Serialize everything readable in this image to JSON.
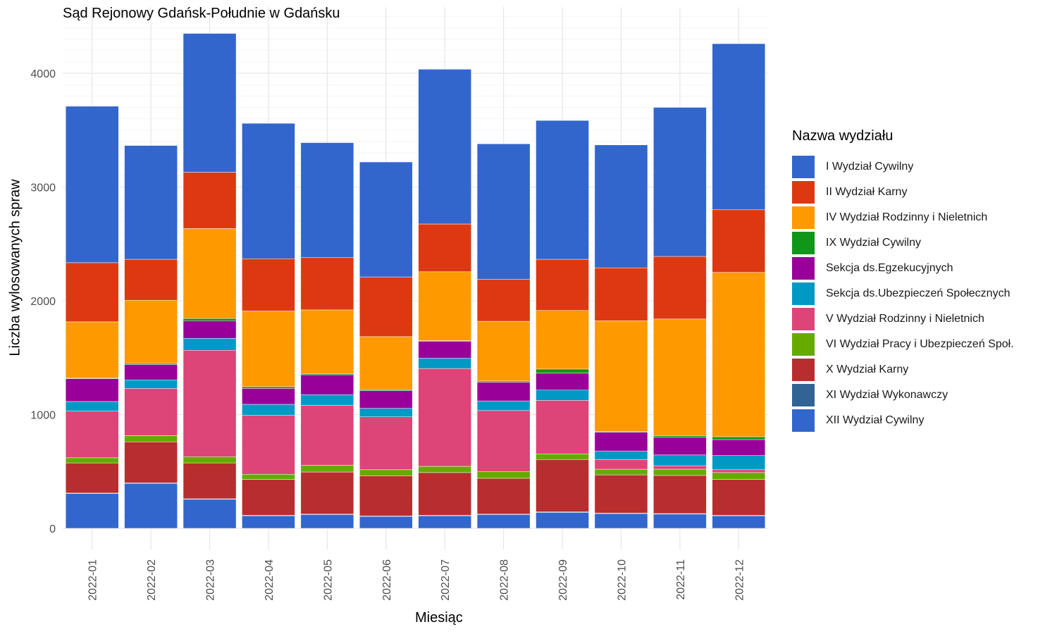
{
  "chart_data": {
    "type": "bar",
    "stacked": true,
    "title": "Sąd Rejonowy Gdańsk-Południe w Gdańsku",
    "xlabel": "Miesiąc",
    "ylabel": "Liczba wylosowanych spraw",
    "ylim": [
      0,
      4500
    ],
    "yticks": [
      0,
      1000,
      2000,
      3000,
      4000
    ],
    "grid": true,
    "legend_title": "Nazwa wydziału",
    "legend_position": "right",
    "categories": [
      "2022-01",
      "2022-02",
      "2022-03",
      "2022-04",
      "2022-05",
      "2022-06",
      "2022-07",
      "2022-08",
      "2022-09",
      "2022-10",
      "2022-11",
      "2022-12"
    ],
    "series": [
      {
        "name": "I Wydział Cywilny",
        "color": "#3366CC",
        "values": [
          1375,
          1000,
          1220,
          1190,
          1010,
          1010,
          1360,
          1190,
          1220,
          1080,
          1310,
          1460
        ]
      },
      {
        "name": "II Wydział Karny",
        "color": "#DC3912",
        "values": [
          520,
          360,
          495,
          460,
          460,
          525,
          420,
          370,
          450,
          465,
          550,
          550
        ]
      },
      {
        "name": "IV Wydział Rodzinny i Nieletnich",
        "color": "#FF9900",
        "values": [
          495,
          555,
          790,
          665,
          560,
          465,
          605,
          525,
          515,
          975,
          1025,
          1445
        ]
      },
      {
        "name": "IX Wydział Cywilny",
        "color": "#109618",
        "values": [
          5,
          10,
          20,
          15,
          10,
          10,
          5,
          10,
          35,
          5,
          15,
          25
        ]
      },
      {
        "name": "Sekcja ds.Egzekucyjnych",
        "color": "#990099",
        "values": [
          200,
          135,
          155,
          140,
          175,
          155,
          150,
          165,
          150,
          165,
          155,
          140
        ]
      },
      {
        "name": "Sekcja ds.Ubezpieczeń Społecznych",
        "color": "#0099C6",
        "values": [
          85,
          75,
          105,
          95,
          95,
          75,
          90,
          85,
          90,
          75,
          95,
          125
        ]
      },
      {
        "name": "V Wydział Rodzinny i Nieletnich",
        "color": "#DD4477",
        "values": [
          410,
          415,
          935,
          520,
          525,
          465,
          860,
          535,
          470,
          85,
          30,
          25
        ]
      },
      {
        "name": "VI Wydział Pracy i Ubezpieczeń Społ.",
        "color": "#66AA00",
        "values": [
          45,
          55,
          55,
          45,
          60,
          55,
          55,
          60,
          50,
          50,
          55,
          60
        ]
      },
      {
        "name": "X Wydział Karny",
        "color": "#B82E2E",
        "values": [
          265,
          360,
          315,
          315,
          370,
          350,
          375,
          315,
          460,
          335,
          335,
          315
        ]
      },
      {
        "name": "XI Wydział Wykonawczy",
        "color": "#316395",
        "values": [
          5,
          5,
          5,
          5,
          5,
          5,
          5,
          5,
          5,
          5,
          5,
          5
        ]
      },
      {
        "name": "XII Wydział Cywilny",
        "color": "#3366CC",
        "values": [
          305,
          395,
          255,
          110,
          120,
          105,
          110,
          120,
          140,
          130,
          125,
          110
        ]
      }
    ]
  }
}
